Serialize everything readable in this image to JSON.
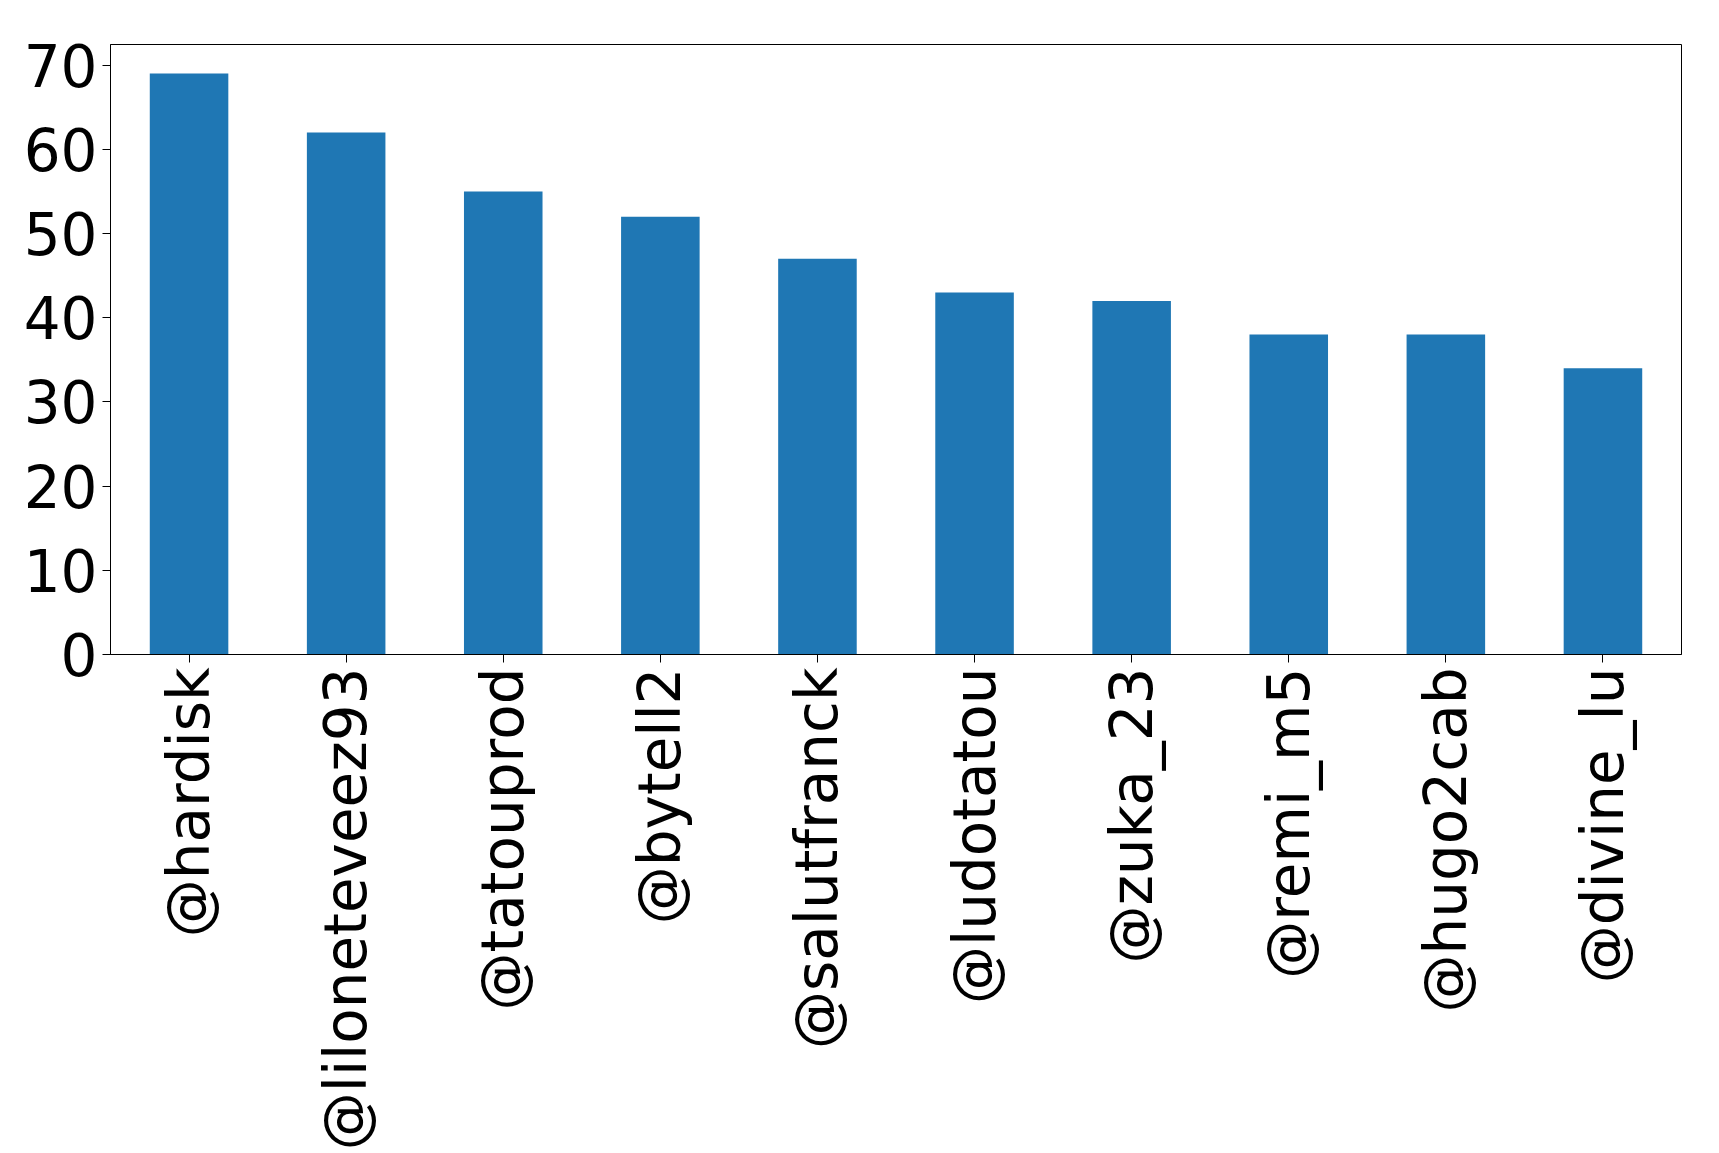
{
  "chart_data": {
    "type": "bar",
    "categories": [
      "@hardisk",
      "@liloneteveez93",
      "@tatouprod",
      "@bytell2",
      "@salutfranck",
      "@ludotatou",
      "@zuka_23",
      "@remi_m5",
      "@hugo2cab",
      "@divine_lu"
    ],
    "values": [
      69,
      62,
      55,
      52,
      47,
      43,
      42,
      38,
      38,
      34
    ],
    "color": "#1f77b4",
    "ylim": [
      0,
      72.45
    ],
    "yticks": [
      0,
      10,
      20,
      30,
      40,
      50,
      60,
      70
    ],
    "grid": false
  }
}
